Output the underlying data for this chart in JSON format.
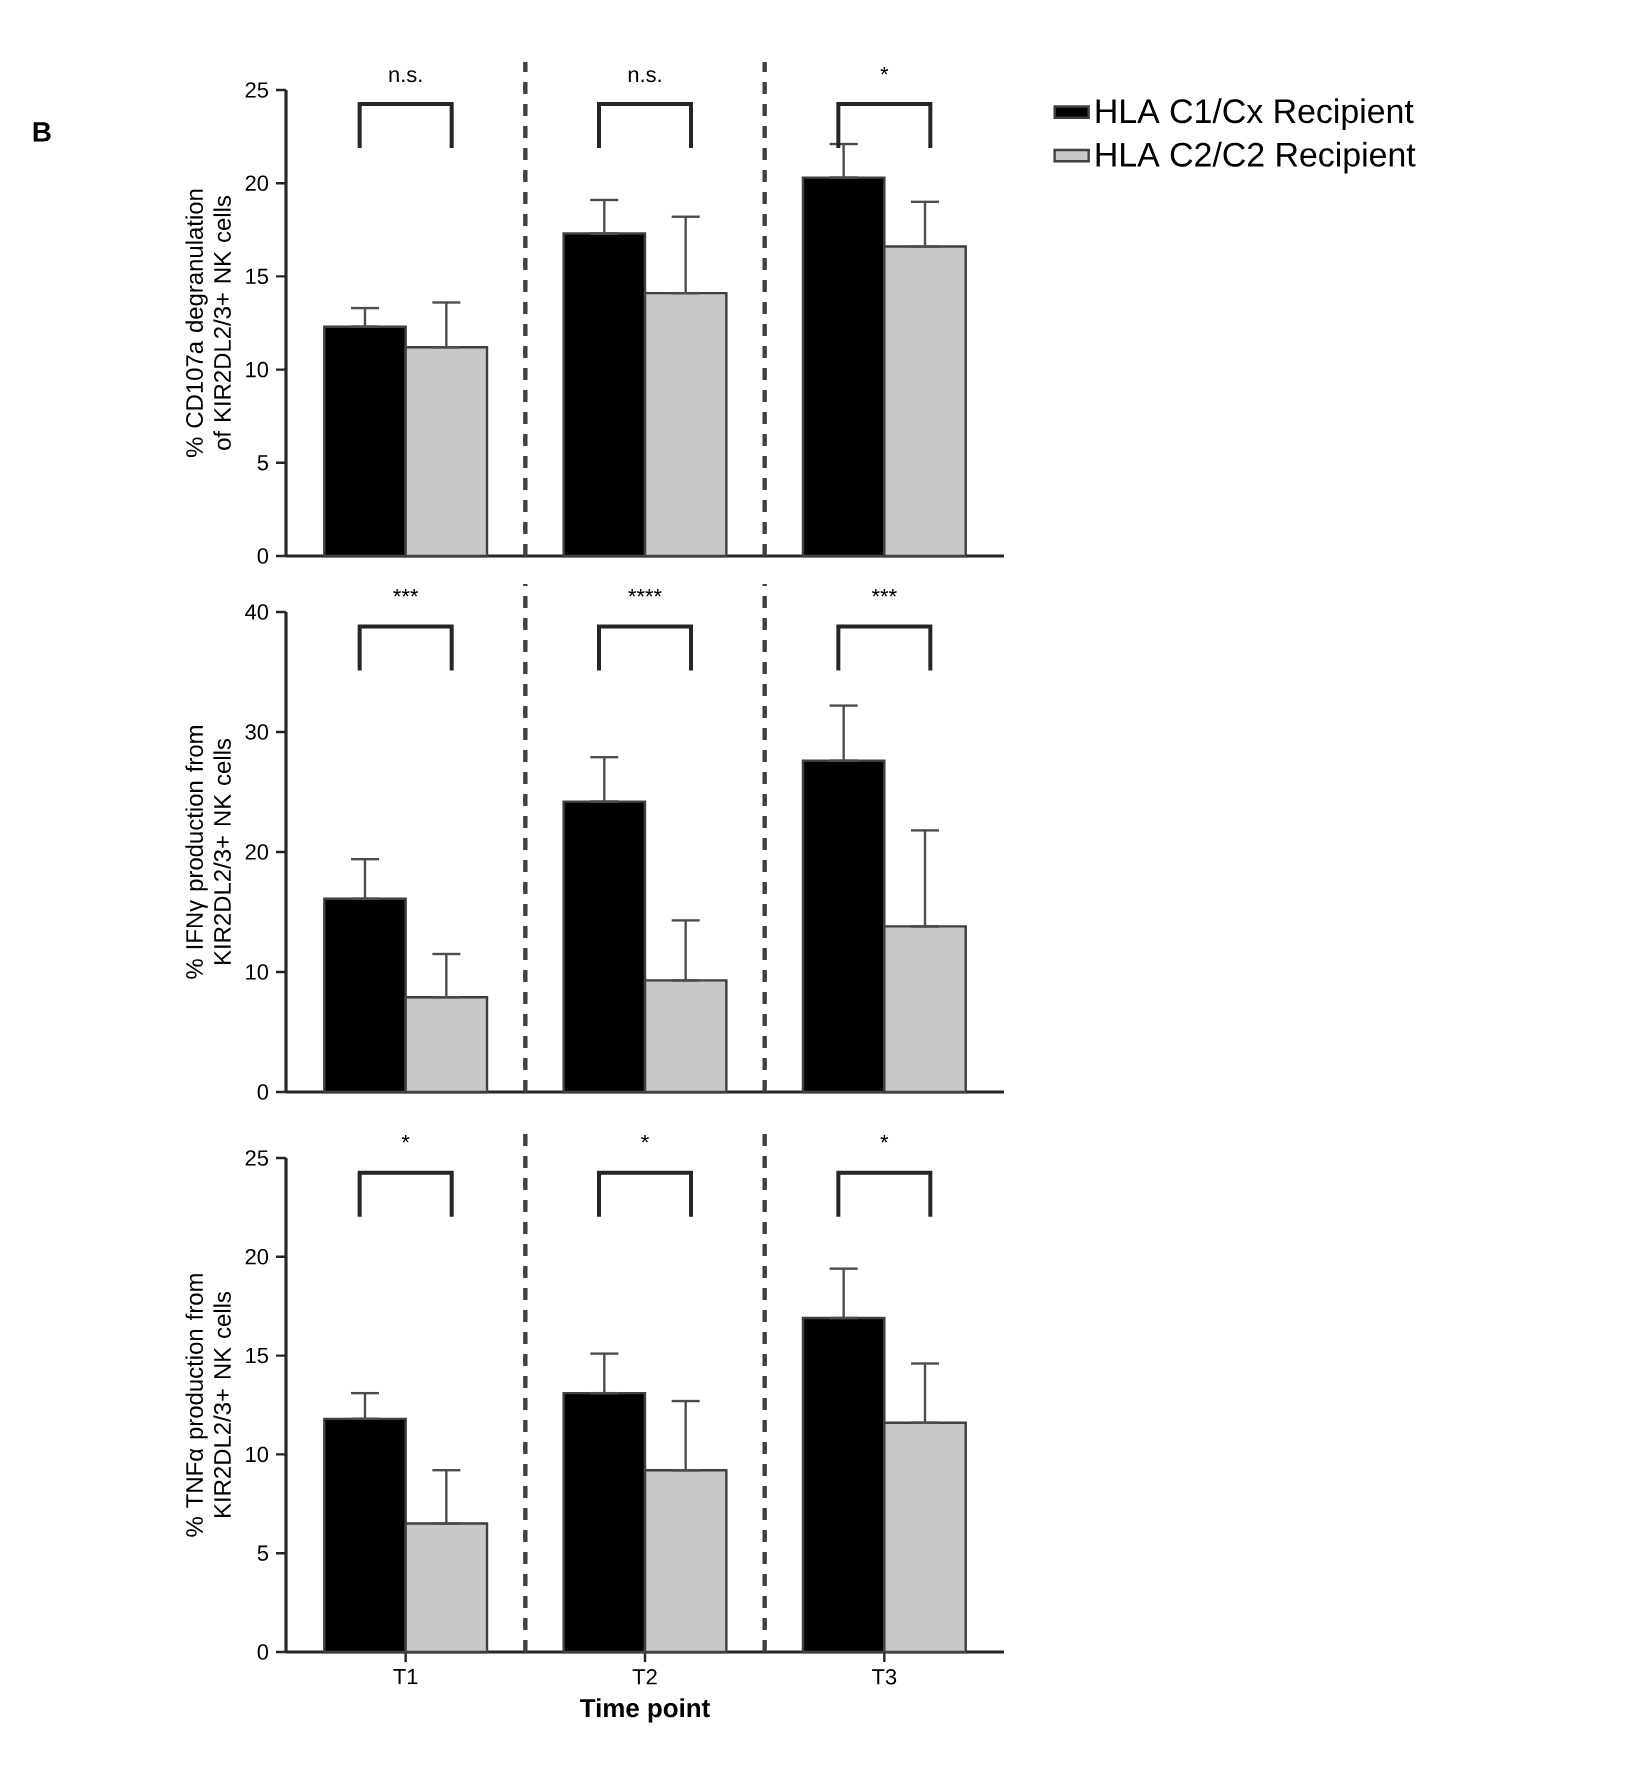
{
  "chart_data": [
    {
      "type": "bar",
      "categories": [
        null,
        null,
        null
      ],
      "ylim": [
        0,
        25
      ],
      "yticks": [
        0,
        5,
        10,
        15,
        20,
        25
      ],
      "ylabel": "% CD107a degranulation of KIR2DL2/3+ NK cells",
      "tick_labels": "y",
      "legend": "right",
      "series": [
        {
          "name": "HLA C1/Cx Recipient",
          "color": "#000000",
          "values": [
            12.3,
            17.3,
            20.3
          ],
          "errors": [
            [
              12.3,
              13.3
            ],
            [
              17.3,
              19.1
            ],
            [
              20.3,
              22.1
            ]
          ]
        },
        {
          "name": "HLA C2/C2 Recipient",
          "color": "#c8c8c8",
          "values": [
            11.2,
            14.1,
            16.6
          ],
          "errors": [
            [
              11.2,
              13.6
            ],
            [
              14.1,
              18.2
            ],
            [
              16.6,
              19.0
            ]
          ]
        }
      ],
      "annotations": [
        "B",
        "n.s.",
        "n.s.",
        "*"
      ]
    },
    {
      "type": "bar",
      "categories": [
        null,
        null,
        null
      ],
      "ylim": [
        0,
        40
      ],
      "yticks": [
        0,
        10,
        20,
        30,
        40
      ],
      "ylabel": "% IFNγ production from KIR2DL2/3+ NK cells",
      "tick_labels": "y",
      "series": [
        {
          "color": "#000000",
          "values": [
            16.1,
            24.2,
            27.6
          ],
          "errors": [
            [
              16.1,
              19.4
            ],
            [
              24.2,
              27.9
            ],
            [
              27.6,
              32.2
            ]
          ]
        },
        {
          "color": "#c8c8c8",
          "values": [
            7.9,
            9.3,
            13.8
          ],
          "errors": [
            [
              7.9,
              11.5
            ],
            [
              9.3,
              14.3
            ],
            [
              13.8,
              21.8
            ]
          ]
        }
      ],
      "annotations": [
        "***",
        "****",
        "***"
      ]
    },
    {
      "type": "bar",
      "categories": [
        "T1",
        "T2",
        "T3"
      ],
      "ylim": [
        0,
        25
      ],
      "yticks": [
        0,
        5,
        10,
        15,
        20,
        25
      ],
      "ylabel": "% TNFα production from KIR2DL2/3+ NK cells",
      "xlabel": "Time point",
      "series": [
        {
          "color": "#000000",
          "values": [
            11.8,
            13.1,
            16.9
          ],
          "errors": [
            [
              11.8,
              13.1
            ],
            [
              13.1,
              15.1
            ],
            [
              16.9,
              19.4
            ]
          ]
        },
        {
          "color": "#c8c8c8",
          "values": [
            6.5,
            9.2,
            11.6
          ],
          "errors": [
            [
              6.5,
              9.2
            ],
            [
              9.2,
              12.7
            ],
            [
              11.6,
              14.6
            ]
          ]
        }
      ],
      "annotations": [
        "*",
        "*",
        "*"
      ]
    }
  ]
}
